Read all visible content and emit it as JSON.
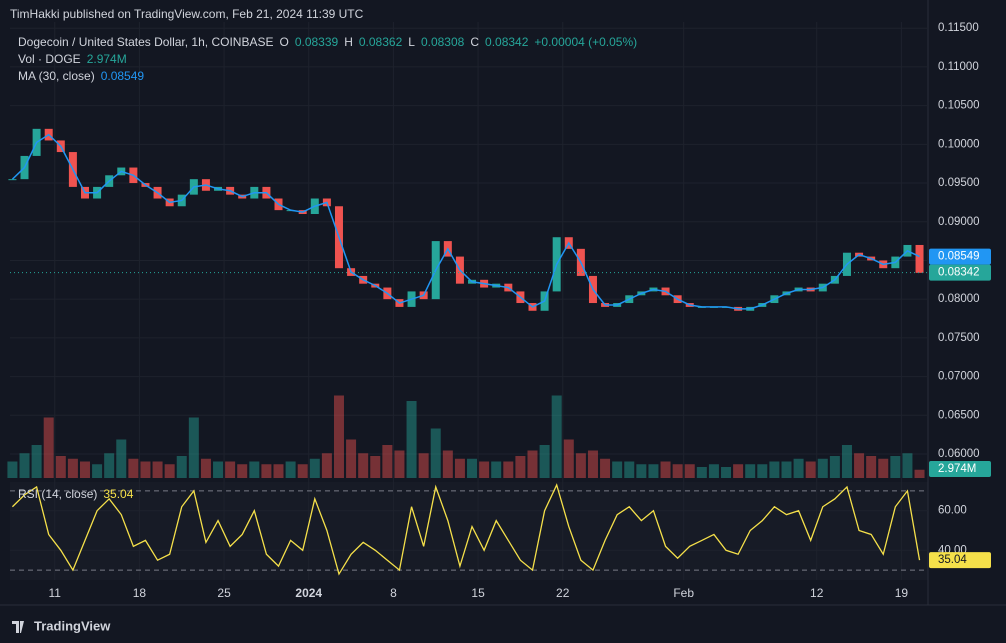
{
  "header": {
    "published": "TimHakki published on TradingView.com, Feb 21, 2024 11:39 UTC",
    "logo": "TradingView"
  },
  "chart_data": {
    "type": "price",
    "title": "Dogecoin / United States Dollar, 1h, COINBASE",
    "ohlc": [
      {
        "label": "O",
        "value": 0.08339
      },
      {
        "label": "H",
        "value": 0.08362
      },
      {
        "label": "L",
        "value": 0.08308
      },
      {
        "label": "C",
        "value": 0.08342
      }
    ],
    "change": "+0.00004 (+0.05%)",
    "up_color": "#26a69a",
    "down_color": "#ef5350",
    "x": [
      -3.5,
      -2.5,
      -1.5,
      -0.5,
      0.5,
      1.5,
      2.5,
      3.5,
      4.5,
      5.5,
      6.5,
      7.5,
      8.5,
      9.5,
      10.5,
      11.5,
      12.5,
      13.5,
      14.5,
      15.5,
      16.5,
      17.5,
      18.5,
      19.5,
      20.5,
      21.5,
      22.5,
      23.5,
      24.5,
      25.5,
      26.5,
      27.5,
      28.5,
      29.5,
      30.5,
      31.5,
      32.5,
      33.5,
      34.5,
      35.5,
      36.5,
      37.5,
      38.5,
      39.5,
      40.5,
      41.5,
      42.5,
      43.5,
      44.5,
      45.5,
      46.5,
      47.5,
      48.5,
      49.5,
      50.5,
      51.5,
      52.5,
      53.5,
      54.5,
      55.5,
      56.5,
      57.5,
      58.5,
      59.5,
      60.5,
      61.5,
      62.5,
      63.5,
      64.5,
      65.5,
      66.5,
      67.5,
      68.5,
      69.5,
      70.5,
      71.5
    ],
    "close": [
      0.0955,
      0.0985,
      0.102,
      0.1005,
      0.099,
      0.0945,
      0.093,
      0.0945,
      0.096,
      0.097,
      0.095,
      0.0945,
      0.093,
      0.092,
      0.0935,
      0.0955,
      0.094,
      0.0945,
      0.0935,
      0.093,
      0.0945,
      0.093,
      0.0915,
      0.0915,
      0.091,
      0.093,
      0.092,
      0.084,
      0.083,
      0.082,
      0.0815,
      0.08,
      0.079,
      0.081,
      0.08,
      0.0875,
      0.0855,
      0.082,
      0.0825,
      0.0815,
      0.082,
      0.081,
      0.0795,
      0.0785,
      0.081,
      0.088,
      0.0865,
      0.083,
      0.0795,
      0.079,
      0.0795,
      0.0805,
      0.081,
      0.0815,
      0.0805,
      0.0795,
      0.079,
      0.079,
      0.079,
      0.079,
      0.0785,
      0.079,
      0.0795,
      0.0805,
      0.081,
      0.0815,
      0.081,
      0.082,
      0.083,
      0.086,
      0.0855,
      0.085,
      0.084,
      0.0855,
      0.087,
      0.0834
    ],
    "series": [
      {
        "name": "MA (30, close)",
        "color": "#2196f3",
        "last": 0.08549,
        "values": [
          0.0955,
          0.097,
          0.10025,
          0.10125,
          0.09975,
          0.09675,
          0.09375,
          0.09375,
          0.09525,
          0.0965,
          0.096,
          0.09475,
          0.09375,
          0.0925,
          0.09275,
          0.0945,
          0.09475,
          0.09425,
          0.094,
          0.09325,
          0.09375,
          0.09375,
          0.09225,
          0.0915,
          0.09125,
          0.092,
          0.0925,
          0.088,
          0.0835,
          0.0825,
          0.08175,
          0.08075,
          0.0795,
          0.08,
          0.0805,
          0.08375,
          0.0865,
          0.08375,
          0.08225,
          0.082,
          0.08175,
          0.0815,
          0.08025,
          0.079,
          0.07975,
          0.0845,
          0.08725,
          0.08475,
          0.08125,
          0.07925,
          0.07925,
          0.08,
          0.08075,
          0.08125,
          0.081,
          0.08,
          0.07925,
          0.079,
          0.079,
          0.079,
          0.07875,
          0.07875,
          0.07925,
          0.08,
          0.08075,
          0.08125,
          0.08125,
          0.0815,
          0.0825,
          0.0845,
          0.08575,
          0.08525,
          0.0845,
          0.08475,
          0.08625,
          0.0855
        ]
      }
    ],
    "xlim": [
      -3.7,
      72.2
    ],
    "xticks": [
      {
        "value": 0,
        "label": "11"
      },
      {
        "value": 7,
        "label": "18"
      },
      {
        "value": 14,
        "label": "25"
      },
      {
        "value": 21,
        "label": "2024"
      },
      {
        "value": 28,
        "label": "8"
      },
      {
        "value": 35,
        "label": "15"
      },
      {
        "value": 42,
        "label": "22"
      },
      {
        "value": 52,
        "label": "Feb"
      },
      {
        "value": 63,
        "label": "12"
      },
      {
        "value": 70,
        "label": "19"
      }
    ],
    "ylim": [
      0.0569,
      0.1158
    ],
    "yticks": [
      {
        "value": 0.06,
        "label": "0.06000"
      },
      {
        "value": 0.065,
        "label": "0.06500"
      },
      {
        "value": 0.07,
        "label": "0.07000"
      },
      {
        "value": 0.075,
        "label": "0.07500"
      },
      {
        "value": 0.08,
        "label": "0.08000"
      },
      {
        "value": 0.085,
        "label": "0.08500"
      },
      {
        "value": 0.09,
        "label": "0.09000"
      },
      {
        "value": 0.095,
        "label": "0.09500"
      },
      {
        "value": 0.1,
        "label": "0.10000"
      },
      {
        "value": 0.105,
        "label": "0.10500"
      },
      {
        "value": 0.11,
        "label": "0.11000"
      },
      {
        "value": 0.115,
        "label": "0.11500"
      }
    ],
    "grid": true,
    "volume": {
      "name": "Vol · DOGE",
      "last": {
        "value": 2.974,
        "label": "2.974M"
      },
      "ylim": [
        0,
        40
      ],
      "values": [
        6,
        9,
        12,
        22,
        8,
        7,
        6,
        5,
        9,
        14,
        7,
        6,
        6,
        5,
        8,
        22,
        7,
        6,
        6,
        5,
        6,
        5,
        5,
        6,
        5,
        7,
        9,
        30,
        14,
        9,
        8,
        12,
        10,
        28,
        9,
        18,
        10,
        7,
        7,
        6,
        6,
        6,
        8,
        10,
        12,
        30,
        14,
        9,
        10,
        7,
        6,
        6,
        5,
        5,
        6,
        5,
        5,
        4,
        5,
        4,
        5,
        5,
        5,
        6,
        6,
        7,
        6,
        7,
        8,
        12,
        9,
        8,
        7,
        8,
        9,
        3
      ]
    },
    "rsi": {
      "name": "RSI (14, close)",
      "color": "#f5e04a",
      "last": 35.04,
      "ylim": [
        25,
        74.5
      ],
      "bands": [
        30,
        70
      ],
      "yticks": [
        {
          "value": 60,
          "label": "60.00"
        },
        {
          "value": 40,
          "label": "40.00"
        }
      ],
      "values": [
        62,
        68,
        72,
        48,
        40,
        30,
        45,
        60,
        66,
        58,
        42,
        45,
        35,
        38,
        62,
        70,
        44,
        55,
        42,
        48,
        60,
        38,
        32,
        45,
        40,
        66,
        50,
        28,
        38,
        44,
        40,
        35,
        30,
        62,
        42,
        72,
        55,
        32,
        52,
        40,
        55,
        45,
        35,
        30,
        60,
        73,
        52,
        35,
        30,
        45,
        58,
        62,
        55,
        60,
        42,
        36,
        42,
        45,
        48,
        40,
        38,
        50,
        55,
        62,
        58,
        60,
        45,
        62,
        66,
        72,
        50,
        48,
        38,
        62,
        70,
        35.04
      ]
    }
  }
}
